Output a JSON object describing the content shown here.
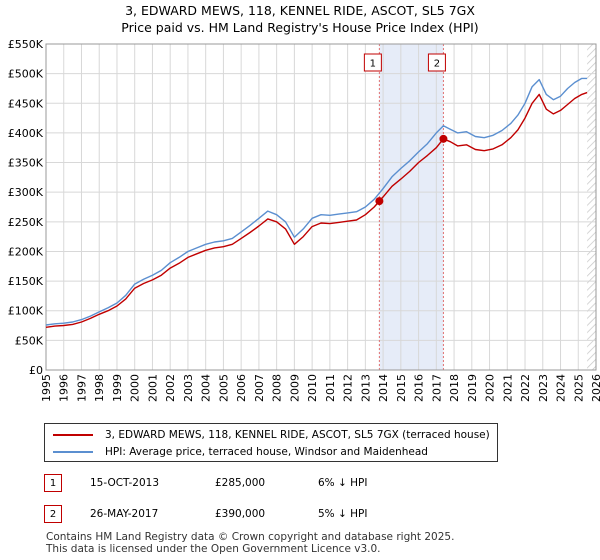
{
  "title_line1": "3, EDWARD MEWS, 118, KENNEL RIDE, ASCOT, SL5 7GX",
  "title_line2": "Price paid vs. HM Land Registry's House Price Index (HPI)",
  "chart_data": {
    "type": "line",
    "title": "3, EDWARD MEWS, 118, KENNEL RIDE, ASCOT, SL5 7GX",
    "subtitle": "Price paid vs. HM Land Registry's House Price Index (HPI)",
    "xlim": [
      1995,
      2026
    ],
    "ylim": [
      0,
      550000
    ],
    "y_ticks": [
      0,
      50000,
      100000,
      150000,
      200000,
      250000,
      300000,
      350000,
      400000,
      450000,
      500000,
      550000
    ],
    "y_tick_labels": [
      "£0",
      "£50K",
      "£100K",
      "£150K",
      "£200K",
      "£250K",
      "£300K",
      "£350K",
      "£400K",
      "£450K",
      "£500K",
      "£550K"
    ],
    "x_ticks": [
      1995,
      1996,
      1997,
      1998,
      1999,
      2000,
      2001,
      2002,
      2003,
      2004,
      2005,
      2006,
      2007,
      2008,
      2009,
      2010,
      2011,
      2012,
      2013,
      2014,
      2015,
      2016,
      2017,
      2018,
      2019,
      2020,
      2021,
      2022,
      2023,
      2024,
      2025,
      2026
    ],
    "grid": true,
    "series": [
      {
        "name": "3, EDWARD MEWS, 118, KENNEL RIDE, ASCOT, SL5 7GX (terraced house)",
        "color": "#c00000",
        "x": [
          1995.0,
          1995.5,
          1996.0,
          1996.5,
          1997.0,
          1997.5,
          1998.0,
          1998.5,
          1999.0,
          1999.5,
          2000.0,
          2000.5,
          2001.0,
          2001.5,
          2002.0,
          2002.5,
          2003.0,
          2003.5,
          2004.0,
          2004.5,
          2005.0,
          2005.5,
          2006.0,
          2006.5,
          2007.0,
          2007.5,
          2008.0,
          2008.5,
          2009.0,
          2009.5,
          2010.0,
          2010.5,
          2011.0,
          2011.5,
          2012.0,
          2012.5,
          2013.0,
          2013.5,
          2013.79,
          2014.0,
          2014.5,
          2015.0,
          2015.5,
          2016.0,
          2016.5,
          2017.0,
          2017.4,
          2017.8,
          2018.2,
          2018.7,
          2019.2,
          2019.7,
          2020.2,
          2020.7,
          2021.2,
          2021.6,
          2022.0,
          2022.4,
          2022.8,
          2023.2,
          2023.6,
          2024.0,
          2024.4,
          2024.8,
          2025.2,
          2025.5
        ],
        "values": [
          72000,
          74000,
          75000,
          77000,
          81000,
          87000,
          94000,
          100000,
          108000,
          120000,
          138000,
          146000,
          152000,
          160000,
          172000,
          180000,
          190000,
          196000,
          202000,
          206000,
          208000,
          212000,
          222000,
          232000,
          243000,
          255000,
          250000,
          238000,
          212000,
          225000,
          242000,
          248000,
          247000,
          249000,
          251000,
          253000,
          262000,
          275000,
          285000,
          292000,
          310000,
          322000,
          335000,
          350000,
          362000,
          375000,
          390000,
          385000,
          378000,
          380000,
          372000,
          370000,
          373000,
          380000,
          392000,
          405000,
          425000,
          450000,
          465000,
          440000,
          432000,
          438000,
          448000,
          458000,
          465000,
          468000
        ]
      },
      {
        "name": "HPI: Average price, terraced house, Windsor and Maidenhead",
        "color": "#5b8fd0",
        "x": [
          1995.0,
          1995.5,
          1996.0,
          1996.5,
          1997.0,
          1997.5,
          1998.0,
          1998.5,
          1999.0,
          1999.5,
          2000.0,
          2000.5,
          2001.0,
          2001.5,
          2002.0,
          2002.5,
          2003.0,
          2003.5,
          2004.0,
          2004.5,
          2005.0,
          2005.5,
          2006.0,
          2006.5,
          2007.0,
          2007.5,
          2008.0,
          2008.5,
          2009.0,
          2009.5,
          2010.0,
          2010.5,
          2011.0,
          2011.5,
          2012.0,
          2012.5,
          2013.0,
          2013.5,
          2014.0,
          2014.5,
          2015.0,
          2015.5,
          2016.0,
          2016.5,
          2017.0,
          2017.4,
          2017.8,
          2018.2,
          2018.7,
          2019.2,
          2019.7,
          2020.2,
          2020.7,
          2021.2,
          2021.6,
          2022.0,
          2022.4,
          2022.8,
          2023.2,
          2023.6,
          2024.0,
          2024.4,
          2024.8,
          2025.2,
          2025.5
        ],
        "values": [
          76000,
          78000,
          79000,
          81000,
          85000,
          91000,
          98000,
          105000,
          113000,
          126000,
          145000,
          153000,
          160000,
          168000,
          181000,
          190000,
          200000,
          206000,
          212000,
          216000,
          218000,
          222000,
          233000,
          244000,
          256000,
          268000,
          262000,
          250000,
          224000,
          238000,
          256000,
          262000,
          261000,
          263000,
          265000,
          267000,
          275000,
          288000,
          306000,
          326000,
          340000,
          353000,
          368000,
          382000,
          400000,
          412000,
          406000,
          400000,
          402000,
          394000,
          392000,
          396000,
          404000,
          416000,
          430000,
          450000,
          478000,
          490000,
          465000,
          456000,
          462000,
          475000,
          485000,
          492000,
          492000
        ]
      }
    ],
    "annotations": [
      {
        "label": "1",
        "x": 2013.79,
        "y": 285000
      },
      {
        "label": "2",
        "x": 2017.4,
        "y": 390000
      }
    ],
    "shaded_range": [
      2013.79,
      2017.4
    ],
    "hatched_from": 2025.5
  },
  "legend": {
    "items": [
      {
        "label": "3, EDWARD MEWS, 118, KENNEL RIDE, ASCOT, SL5 7GX (terraced house)",
        "color": "#c00000"
      },
      {
        "label": "HPI: Average price, terraced house, Windsor and Maidenhead",
        "color": "#5b8fd0"
      }
    ]
  },
  "transactions": [
    {
      "num": "1",
      "date": "15-OCT-2013",
      "price": "£285,000",
      "hpi": "6% ↓ HPI"
    },
    {
      "num": "2",
      "date": "26-MAY-2017",
      "price": "£390,000",
      "hpi": "5% ↓ HPI"
    }
  ],
  "footer": {
    "line1": "Contains HM Land Registry data © Crown copyright and database right 2025.",
    "line2": "This data is licensed under the Open Government Licence v3.0."
  }
}
